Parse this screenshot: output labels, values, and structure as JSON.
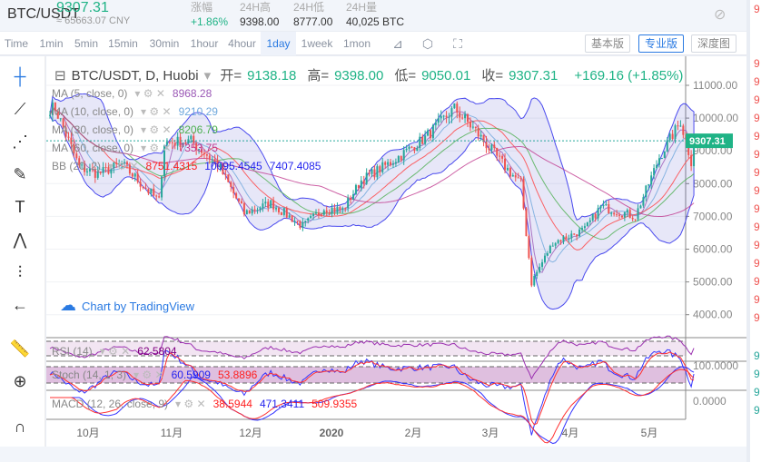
{
  "header": {
    "pair": "BTC/USDT",
    "last": "9307.31",
    "cny": "≈ 65663.07 CNY",
    "stats": [
      {
        "k": "涨幅",
        "v": "+1.86%",
        "green": true
      },
      {
        "k": "24H高",
        "v": "9398.00"
      },
      {
        "k": "24H低",
        "v": "8777.00"
      },
      {
        "k": "24H量",
        "v": "40,025 BTC"
      }
    ]
  },
  "toolbar": {
    "intervals": [
      "Time",
      "1min",
      "5min",
      "15min",
      "30min",
      "1hour",
      "4hour",
      "1day",
      "1week",
      "1mon"
    ],
    "selected": "1day",
    "views": [
      "基本版",
      "专业版",
      "深度图"
    ],
    "selected_view": "专业版"
  },
  "chart": {
    "symbol": "BTC/USDT, D, Huobi",
    "ohlc": [
      {
        "k": "开=",
        "v": "9138.18"
      },
      {
        "k": "高=",
        "v": "9398.00"
      },
      {
        "k": "低=",
        "v": "9050.01"
      },
      {
        "k": "收=",
        "v": "9307.31"
      },
      {
        "k": "",
        "v": "+169.16 (+1.85%)"
      }
    ],
    "indicators": [
      {
        "label": "MA (5, close, 0)",
        "values": [
          "8968.28"
        ],
        "colors": [
          "#9b59b6"
        ]
      },
      {
        "label": "MA (10, close, 0)",
        "values": [
          "9210.29"
        ],
        "colors": [
          "#6fa8dc"
        ]
      },
      {
        "label": "MA (30, close, 0)",
        "values": [
          "8206.79"
        ],
        "colors": [
          "#4caf50"
        ]
      },
      {
        "label": "MA (60, close, 0)",
        "values": [
          "7353.75"
        ],
        "colors": [
          "#c0398f"
        ]
      },
      {
        "label": "BB (20, 2)",
        "values": [
          "8751.4315",
          "10095.4545",
          "7407.4085"
        ],
        "colors": [
          "#ff2020",
          "#2222ee",
          "#2222ee"
        ]
      }
    ],
    "oscillators": [
      {
        "label": "RSI (14)",
        "values": [
          "62.5804"
        ],
        "colors": [
          "#800080"
        ]
      },
      {
        "label": "Stoch (14, 1, 3)",
        "values": [
          "60.5909",
          "53.8896"
        ],
        "colors": [
          "#2222ee",
          "#ff2020"
        ]
      },
      {
        "label": "MACD (12, 26, close, 9)",
        "values": [
          "38.5944",
          "471.3411",
          "509.9355"
        ],
        "colors": [
          "#ff2020",
          "#2222ee",
          "#ff2020"
        ]
      }
    ],
    "price_ticks": [
      "11000.00",
      "10000.00",
      "9000.00",
      "8000.00",
      "7000.00",
      "6000.00",
      "5000.00",
      "4000.00"
    ],
    "stoch_tick": "100.0000",
    "macd_tick": "0.0000",
    "x_ticks": [
      "10月",
      "11月",
      "12月",
      "2020",
      "2月",
      "3月",
      "4月",
      "5月"
    ],
    "last_price_label": "9307.31",
    "watermark": "Chart by TradingView",
    "colors": {
      "up": "#26a69a",
      "down": "#ef5350",
      "accent": "#2a7ae2"
    }
  },
  "chart_data": {
    "type": "candlestick",
    "ylim": [
      3500,
      11500
    ],
    "key_closes": [
      [
        "2019-09-15",
        10300
      ],
      [
        "2019-09-24",
        8500
      ],
      [
        "2019-10-01",
        8300
      ],
      [
        "2019-10-10",
        8600
      ],
      [
        "2019-10-24",
        7450
      ],
      [
        "2019-10-26",
        9250
      ],
      [
        "2019-11-05",
        9300
      ],
      [
        "2019-11-15",
        8600
      ],
      [
        "2019-11-25",
        7100
      ],
      [
        "2019-12-05",
        7400
      ],
      [
        "2019-12-17",
        6700
      ],
      [
        "2019-12-25",
        7250
      ],
      [
        "2020-01-01",
        7200
      ],
      [
        "2020-01-08",
        8100
      ],
      [
        "2020-01-20",
        8700
      ],
      [
        "2020-02-01",
        9400
      ],
      [
        "2020-02-12",
        10300
      ],
      [
        "2020-02-20",
        9600
      ],
      [
        "2020-03-01",
        8600
      ],
      [
        "2020-03-08",
        8000
      ],
      [
        "2020-03-12",
        5000
      ],
      [
        "2020-03-20",
        6200
      ],
      [
        "2020-04-01",
        6600
      ],
      [
        "2020-04-07",
        7300
      ],
      [
        "2020-04-20",
        7000
      ],
      [
        "2020-04-29",
        8800
      ],
      [
        "2020-05-07",
        9900
      ],
      [
        "2020-05-11",
        8700
      ],
      [
        "2020-05-12",
        9307
      ]
    ]
  },
  "right_panel": {
    "rows": [
      "9",
      "9",
      "9",
      "9",
      "9",
      "9",
      "9",
      "9",
      "9",
      "9",
      "9",
      "9",
      "9",
      "9",
      "9",
      "9",
      "9",
      "9",
      "9",
      "9"
    ]
  }
}
